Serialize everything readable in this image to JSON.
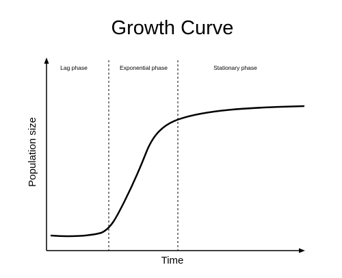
{
  "diagram": {
    "title": "Growth Curve",
    "x_axis_label": "Time",
    "y_axis_label": "Population size",
    "phases": [
      {
        "label": "Lag phase"
      },
      {
        "label": "Exponential phase"
      },
      {
        "label": "Stationary phase"
      }
    ],
    "colors": {
      "line": "#000000",
      "background": "#ffffff"
    }
  }
}
